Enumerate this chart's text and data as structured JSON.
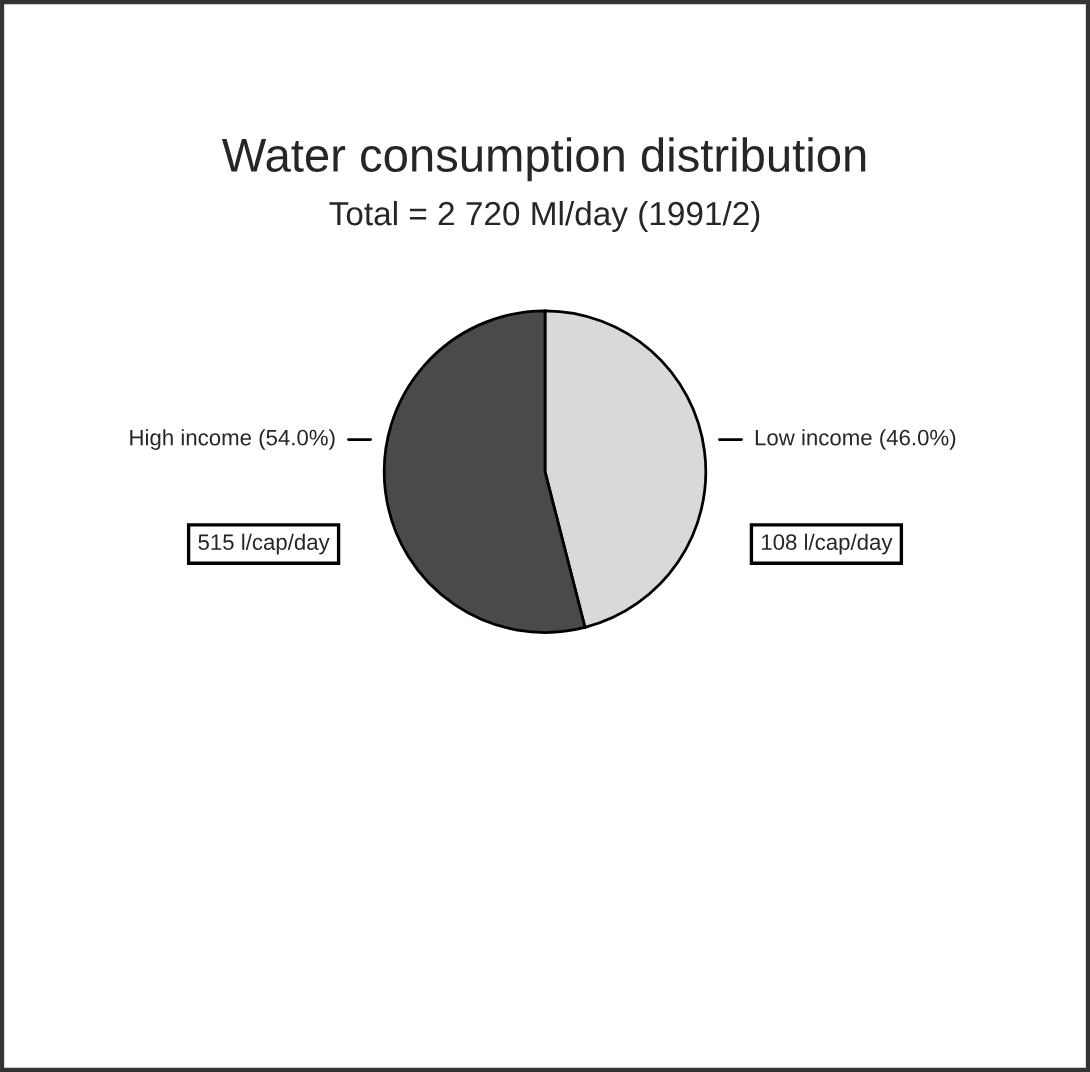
{
  "chart_data": {
    "type": "pie",
    "title": "Water consumption distribution",
    "subtitle": "Total = 2 720 Ml/day (1991/2)",
    "categories": [
      "Low income (46.0%)",
      "High income (54.0%)"
    ],
    "values": [
      46.0,
      54.0
    ],
    "colors": [
      "#d9d9d9",
      "#4a4a4a"
    ],
    "annotations": [
      "108 l/cap/day",
      "515 l/cap/day"
    ]
  }
}
